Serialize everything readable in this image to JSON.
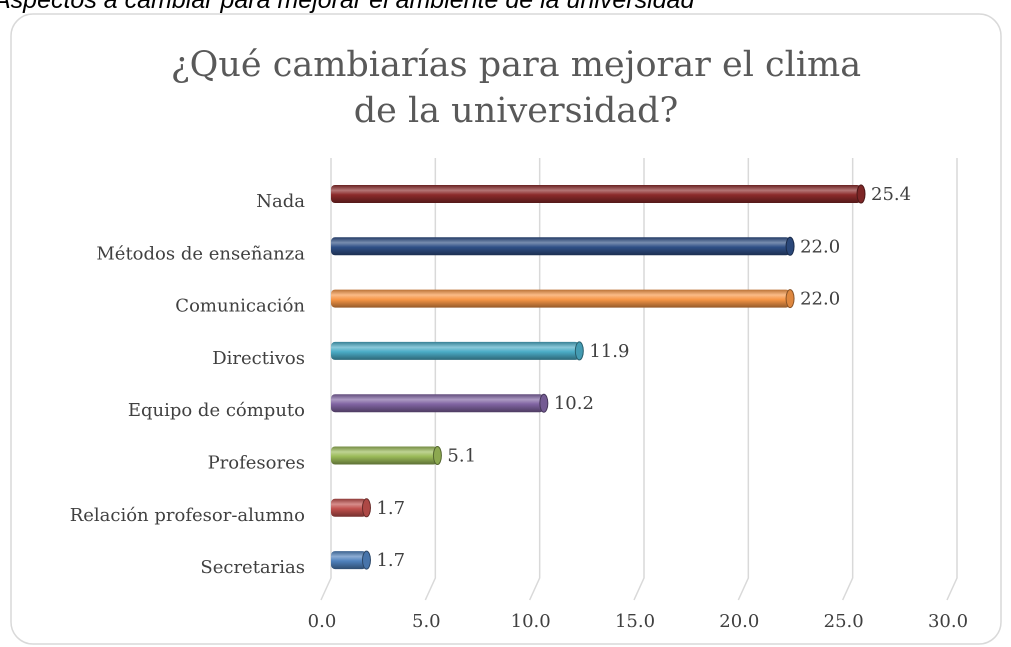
{
  "caption": "Aspectos a cambiar para mejorar el ambiente de la universidad",
  "chart_data": {
    "type": "bar",
    "orientation": "horizontal",
    "title": "¿Qué cambiarías para mejorar el clima de la universidad?",
    "categories": [
      "Nada",
      "Métodos de enseñanza",
      "Comunicación",
      "Directivos",
      "Equipo de cómputo",
      "Profesores",
      "Relación profesor-alumno",
      "Secretarias"
    ],
    "values": [
      25.4,
      22.0,
      22.0,
      11.9,
      10.2,
      5.1,
      1.7,
      1.7
    ],
    "value_labels": [
      "25.4",
      "22.0",
      "22.0",
      "11.9",
      "10.2",
      "5.1",
      "1.7",
      "1.7"
    ],
    "colors": [
      "#8b2a2a",
      "#2f4f86",
      "#f79646",
      "#4bacc6",
      "#8064a2",
      "#9bbb59",
      "#c0504d",
      "#4f81bd"
    ],
    "xlim": [
      0,
      30
    ],
    "xticks": [
      {
        "value": 0,
        "label": "0.0"
      },
      {
        "value": 5,
        "label": "5.0"
      },
      {
        "value": 10,
        "label": "10.0"
      },
      {
        "value": 15,
        "label": "15.0"
      },
      {
        "value": 20,
        "label": "20.0"
      },
      {
        "value": 25,
        "label": "25.0"
      },
      {
        "value": 30,
        "label": "30.0"
      }
    ],
    "grid": true
  }
}
